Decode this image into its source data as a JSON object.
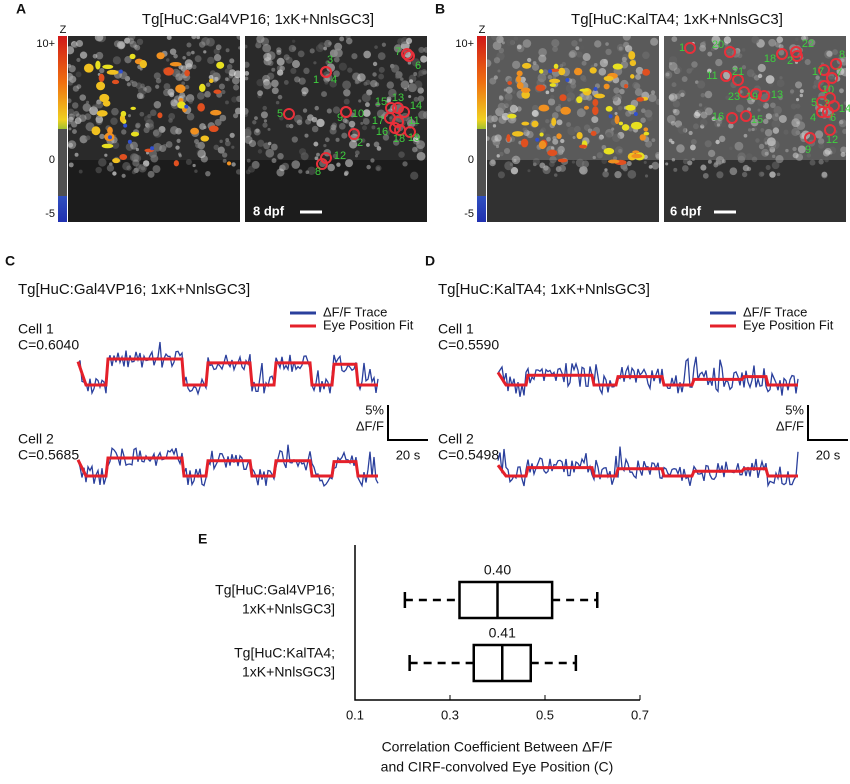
{
  "figure": {
    "a": {
      "letter": "A",
      "title": "Tg[HuC:Gal4VP16; 1xK+NnlsGC3]",
      "colorbar": {
        "label": "Z",
        "ticks": [
          "10+",
          "0",
          "-5"
        ]
      },
      "scale": "8 dpf",
      "rois": [
        "3",
        "1",
        "4",
        "7",
        "6",
        "5",
        "9",
        "10",
        "15",
        "13",
        "14",
        "17",
        "11",
        "16",
        "18",
        "19",
        "2",
        "12",
        "8"
      ]
    },
    "b": {
      "letter": "B",
      "title": "Tg[HuC:KalTA4; 1xK+NnlsGC3]",
      "colorbar": {
        "label": "Z",
        "ticks": [
          "10+",
          "0",
          "-5"
        ]
      },
      "scale": "6 dpf",
      "rois": [
        "1",
        "20",
        "22",
        "18",
        "2",
        "8",
        "17",
        "7",
        "11",
        "21",
        "10",
        "23",
        "19",
        "13",
        "5",
        "3",
        "14",
        "4",
        "6",
        "16",
        "15",
        "9",
        "12"
      ]
    },
    "c": {
      "letter": "C",
      "title": "Tg[HuC:Gal4VP16; 1xK+NnlsGC3]",
      "legend": [
        "ΔF/F Trace",
        "Eye Position Fit"
      ],
      "cells": [
        {
          "name": "Cell 1",
          "corr": "C=0.6040"
        },
        {
          "name": "Cell 2",
          "corr": "C=0.5685"
        }
      ],
      "scale_bar": {
        "y": "5%",
        "y_unit": "ΔF/F",
        "x": "20 s"
      }
    },
    "d": {
      "letter": "D",
      "title": "Tg[HuC:KalTA4; 1xK+NnlsGC3]",
      "legend": [
        "ΔF/F Trace",
        "Eye Position Fit"
      ],
      "cells": [
        {
          "name": "Cell 1",
          "corr": "C=0.5590"
        },
        {
          "name": "Cell 2",
          "corr": "C=0.5498"
        }
      ],
      "scale_bar": {
        "y": "5%",
        "y_unit": "ΔF/F",
        "x": "20 s"
      }
    }
  },
  "chart_data": {
    "type": "box",
    "letter": "E",
    "categories": [
      [
        "Tg[HuC:Gal4VP16;",
        "1xK+NnlsGC3]"
      ],
      [
        "Tg[HuC:KalTA4;",
        "1xK+NnlsGC3]"
      ]
    ],
    "boxes": [
      {
        "low": 0.205,
        "q1": 0.32,
        "median": 0.4,
        "q3": 0.515,
        "high": 0.61,
        "median_label": "0.40"
      },
      {
        "low": 0.215,
        "q1": 0.35,
        "median": 0.41,
        "q3": 0.47,
        "high": 0.565,
        "median_label": "0.41"
      }
    ],
    "xlim": [
      0.1,
      0.7
    ],
    "xticks": [
      0.1,
      0.3,
      0.5,
      0.7
    ],
    "xlabel": [
      "Correlation Coefficient Between ΔF/F",
      "and CIRF-convolved Eye Position (C)"
    ]
  }
}
